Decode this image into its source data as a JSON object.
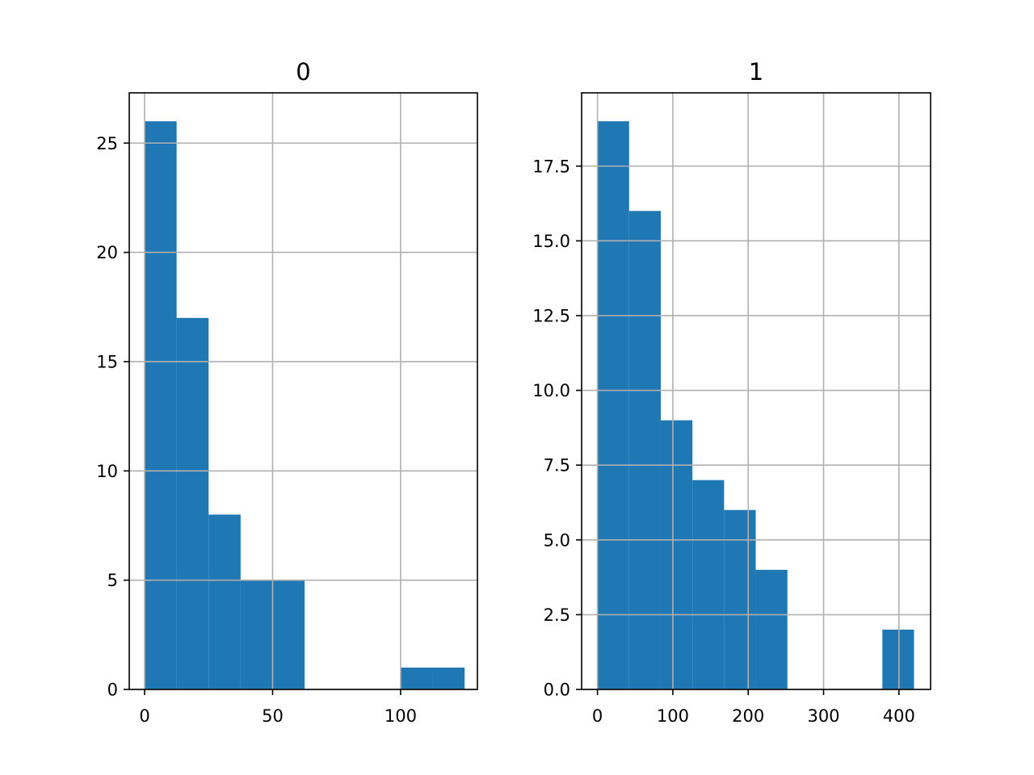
{
  "chart_data": [
    {
      "type": "bar",
      "title": "0",
      "bar_color": "#1f77b4",
      "grid": true,
      "xlim": [
        -6,
        130
      ],
      "ylim": [
        0,
        27.3
      ],
      "xticks": [
        0,
        50,
        100
      ],
      "yticks": [
        0,
        5,
        10,
        15,
        20,
        25
      ],
      "bins": [
        {
          "x0": 0,
          "x1": 12.5,
          "count": 26
        },
        {
          "x0": 12.5,
          "x1": 25,
          "count": 17
        },
        {
          "x0": 25,
          "x1": 37.5,
          "count": 8
        },
        {
          "x0": 37.5,
          "x1": 50,
          "count": 5
        },
        {
          "x0": 50,
          "x1": 62.5,
          "count": 5
        },
        {
          "x0": 62.5,
          "x1": 75,
          "count": 0
        },
        {
          "x0": 75,
          "x1": 87.5,
          "count": 0
        },
        {
          "x0": 87.5,
          "x1": 100,
          "count": 0
        },
        {
          "x0": 100,
          "x1": 112.5,
          "count": 1
        },
        {
          "x0": 112.5,
          "x1": 125,
          "count": 1
        }
      ]
    },
    {
      "type": "bar",
      "title": "1",
      "bar_color": "#1f77b4",
      "grid": true,
      "xlim": [
        -21,
        442
      ],
      "ylim": [
        0,
        19.95
      ],
      "xticks": [
        0,
        100,
        200,
        300,
        400
      ],
      "yticks": [
        "0.0",
        "2.5",
        "5.0",
        "7.5",
        "10.0",
        "12.5",
        "15.0",
        "17.5"
      ],
      "bins": [
        {
          "x0": 0,
          "x1": 42,
          "count": 19
        },
        {
          "x0": 42,
          "x1": 84,
          "count": 16
        },
        {
          "x0": 84,
          "x1": 126,
          "count": 9
        },
        {
          "x0": 126,
          "x1": 168,
          "count": 7
        },
        {
          "x0": 168,
          "x1": 210,
          "count": 6
        },
        {
          "x0": 210,
          "x1": 252,
          "count": 4
        },
        {
          "x0": 252,
          "x1": 294,
          "count": 0
        },
        {
          "x0": 294,
          "x1": 336,
          "count": 0
        },
        {
          "x0": 336,
          "x1": 378,
          "count": 0
        },
        {
          "x0": 378,
          "x1": 420,
          "count": 2
        }
      ]
    }
  ]
}
